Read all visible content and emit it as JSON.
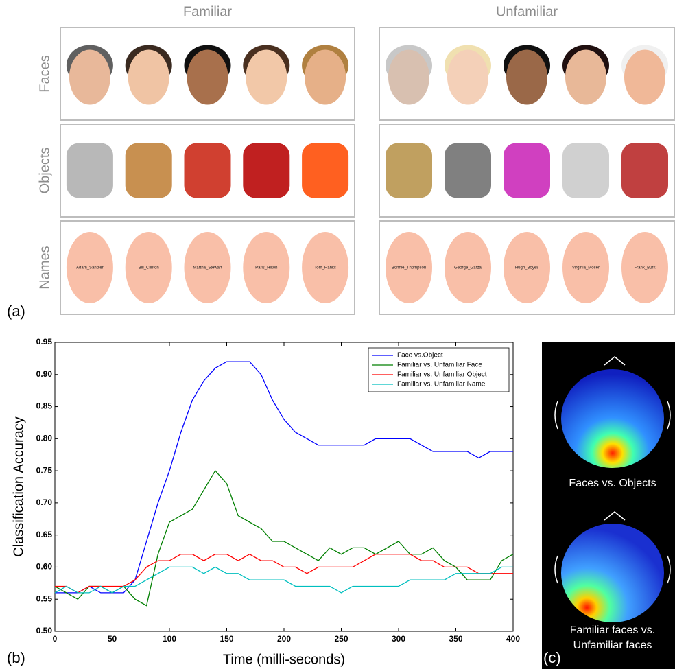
{
  "panel_labels": [
    "(a)",
    "(b)",
    "(c)"
  ],
  "stimuli": {
    "columns": [
      "Familiar",
      "Unfamiliar"
    ],
    "rows": [
      "Faces",
      "Objects",
      "Names"
    ],
    "names": [
      [
        "Adam_Sandler",
        "Bill_Clinton",
        "Martha_Stewart",
        "Paris_Hilton",
        "Tom_Hanks"
      ],
      [
        "Bonnie_Thompson",
        "George_Garza",
        "Hugh_Boyes",
        "Virginia_Moser",
        "Frank_Burk"
      ]
    ]
  },
  "chart_data": {
    "type": "line",
    "xlabel": "Time (milli-seconds)",
    "ylabel": "Classification Accuracy",
    "x": [
      0,
      10,
      20,
      30,
      40,
      50,
      60,
      70,
      80,
      90,
      100,
      110,
      120,
      130,
      140,
      150,
      160,
      170,
      180,
      190,
      200,
      210,
      220,
      230,
      240,
      250,
      260,
      270,
      280,
      290,
      300,
      310,
      320,
      330,
      340,
      350,
      360,
      370,
      380,
      390,
      400
    ],
    "series": [
      {
        "name": "Face vs.Object",
        "color": "#0000ff",
        "values": [
          0.56,
          0.56,
          0.56,
          0.57,
          0.56,
          0.56,
          0.56,
          0.58,
          0.64,
          0.7,
          0.75,
          0.81,
          0.86,
          0.89,
          0.91,
          0.92,
          0.92,
          0.92,
          0.9,
          0.86,
          0.83,
          0.81,
          0.8,
          0.79,
          0.79,
          0.79,
          0.79,
          0.79,
          0.8,
          0.8,
          0.8,
          0.8,
          0.79,
          0.78,
          0.78,
          0.78,
          0.78,
          0.77,
          0.78,
          0.78,
          0.78
        ]
      },
      {
        "name": "Familiar vs. Unfamiliar Face",
        "color": "#007f00",
        "values": [
          0.57,
          0.56,
          0.55,
          0.57,
          0.57,
          0.56,
          0.57,
          0.55,
          0.54,
          0.62,
          0.67,
          0.68,
          0.69,
          0.72,
          0.75,
          0.73,
          0.68,
          0.67,
          0.66,
          0.64,
          0.64,
          0.63,
          0.62,
          0.61,
          0.63,
          0.62,
          0.63,
          0.63,
          0.62,
          0.63,
          0.64,
          0.62,
          0.62,
          0.63,
          0.61,
          0.6,
          0.58,
          0.58,
          0.58,
          0.61,
          0.62
        ]
      },
      {
        "name": "Familiar vs. Unfamiliar Object",
        "color": "#ff0000",
        "values": [
          0.57,
          0.57,
          0.56,
          0.57,
          0.57,
          0.57,
          0.57,
          0.58,
          0.6,
          0.61,
          0.61,
          0.62,
          0.62,
          0.61,
          0.62,
          0.62,
          0.61,
          0.62,
          0.61,
          0.61,
          0.6,
          0.6,
          0.59,
          0.6,
          0.6,
          0.6,
          0.6,
          0.61,
          0.62,
          0.62,
          0.62,
          0.62,
          0.61,
          0.61,
          0.6,
          0.6,
          0.6,
          0.59,
          0.59,
          0.59,
          0.59
        ]
      },
      {
        "name": "Familiar vs. Unfamiliar Name",
        "color": "#00bfbf",
        "values": [
          0.56,
          0.57,
          0.56,
          0.56,
          0.57,
          0.56,
          0.57,
          0.57,
          0.58,
          0.59,
          0.6,
          0.6,
          0.6,
          0.59,
          0.6,
          0.59,
          0.59,
          0.58,
          0.58,
          0.58,
          0.58,
          0.57,
          0.57,
          0.57,
          0.57,
          0.56,
          0.57,
          0.57,
          0.57,
          0.57,
          0.57,
          0.58,
          0.58,
          0.58,
          0.58,
          0.59,
          0.59,
          0.59,
          0.59,
          0.6,
          0.6
        ]
      }
    ],
    "xlim": [
      0,
      400
    ],
    "xticks": [
      0,
      50,
      100,
      150,
      200,
      250,
      300,
      350,
      400
    ],
    "ylim": [
      0.5,
      0.95
    ],
    "yticks": [
      {
        "value": 0.5,
        "label": "0.50"
      },
      0.55,
      {
        "value": 0.6,
        "label": "0.60"
      },
      0.65,
      {
        "value": 0.7,
        "label": "0.70"
      },
      0.75,
      {
        "value": 0.8,
        "label": "0.80"
      },
      0.85,
      {
        "value": 0.9,
        "label": "0.90"
      },
      0.95
    ],
    "legend": "upper right"
  },
  "topography": {
    "captions": [
      [
        "Faces vs. Objects"
      ],
      [
        "Familiar faces vs.",
        "Unfamiliar faces"
      ]
    ]
  }
}
